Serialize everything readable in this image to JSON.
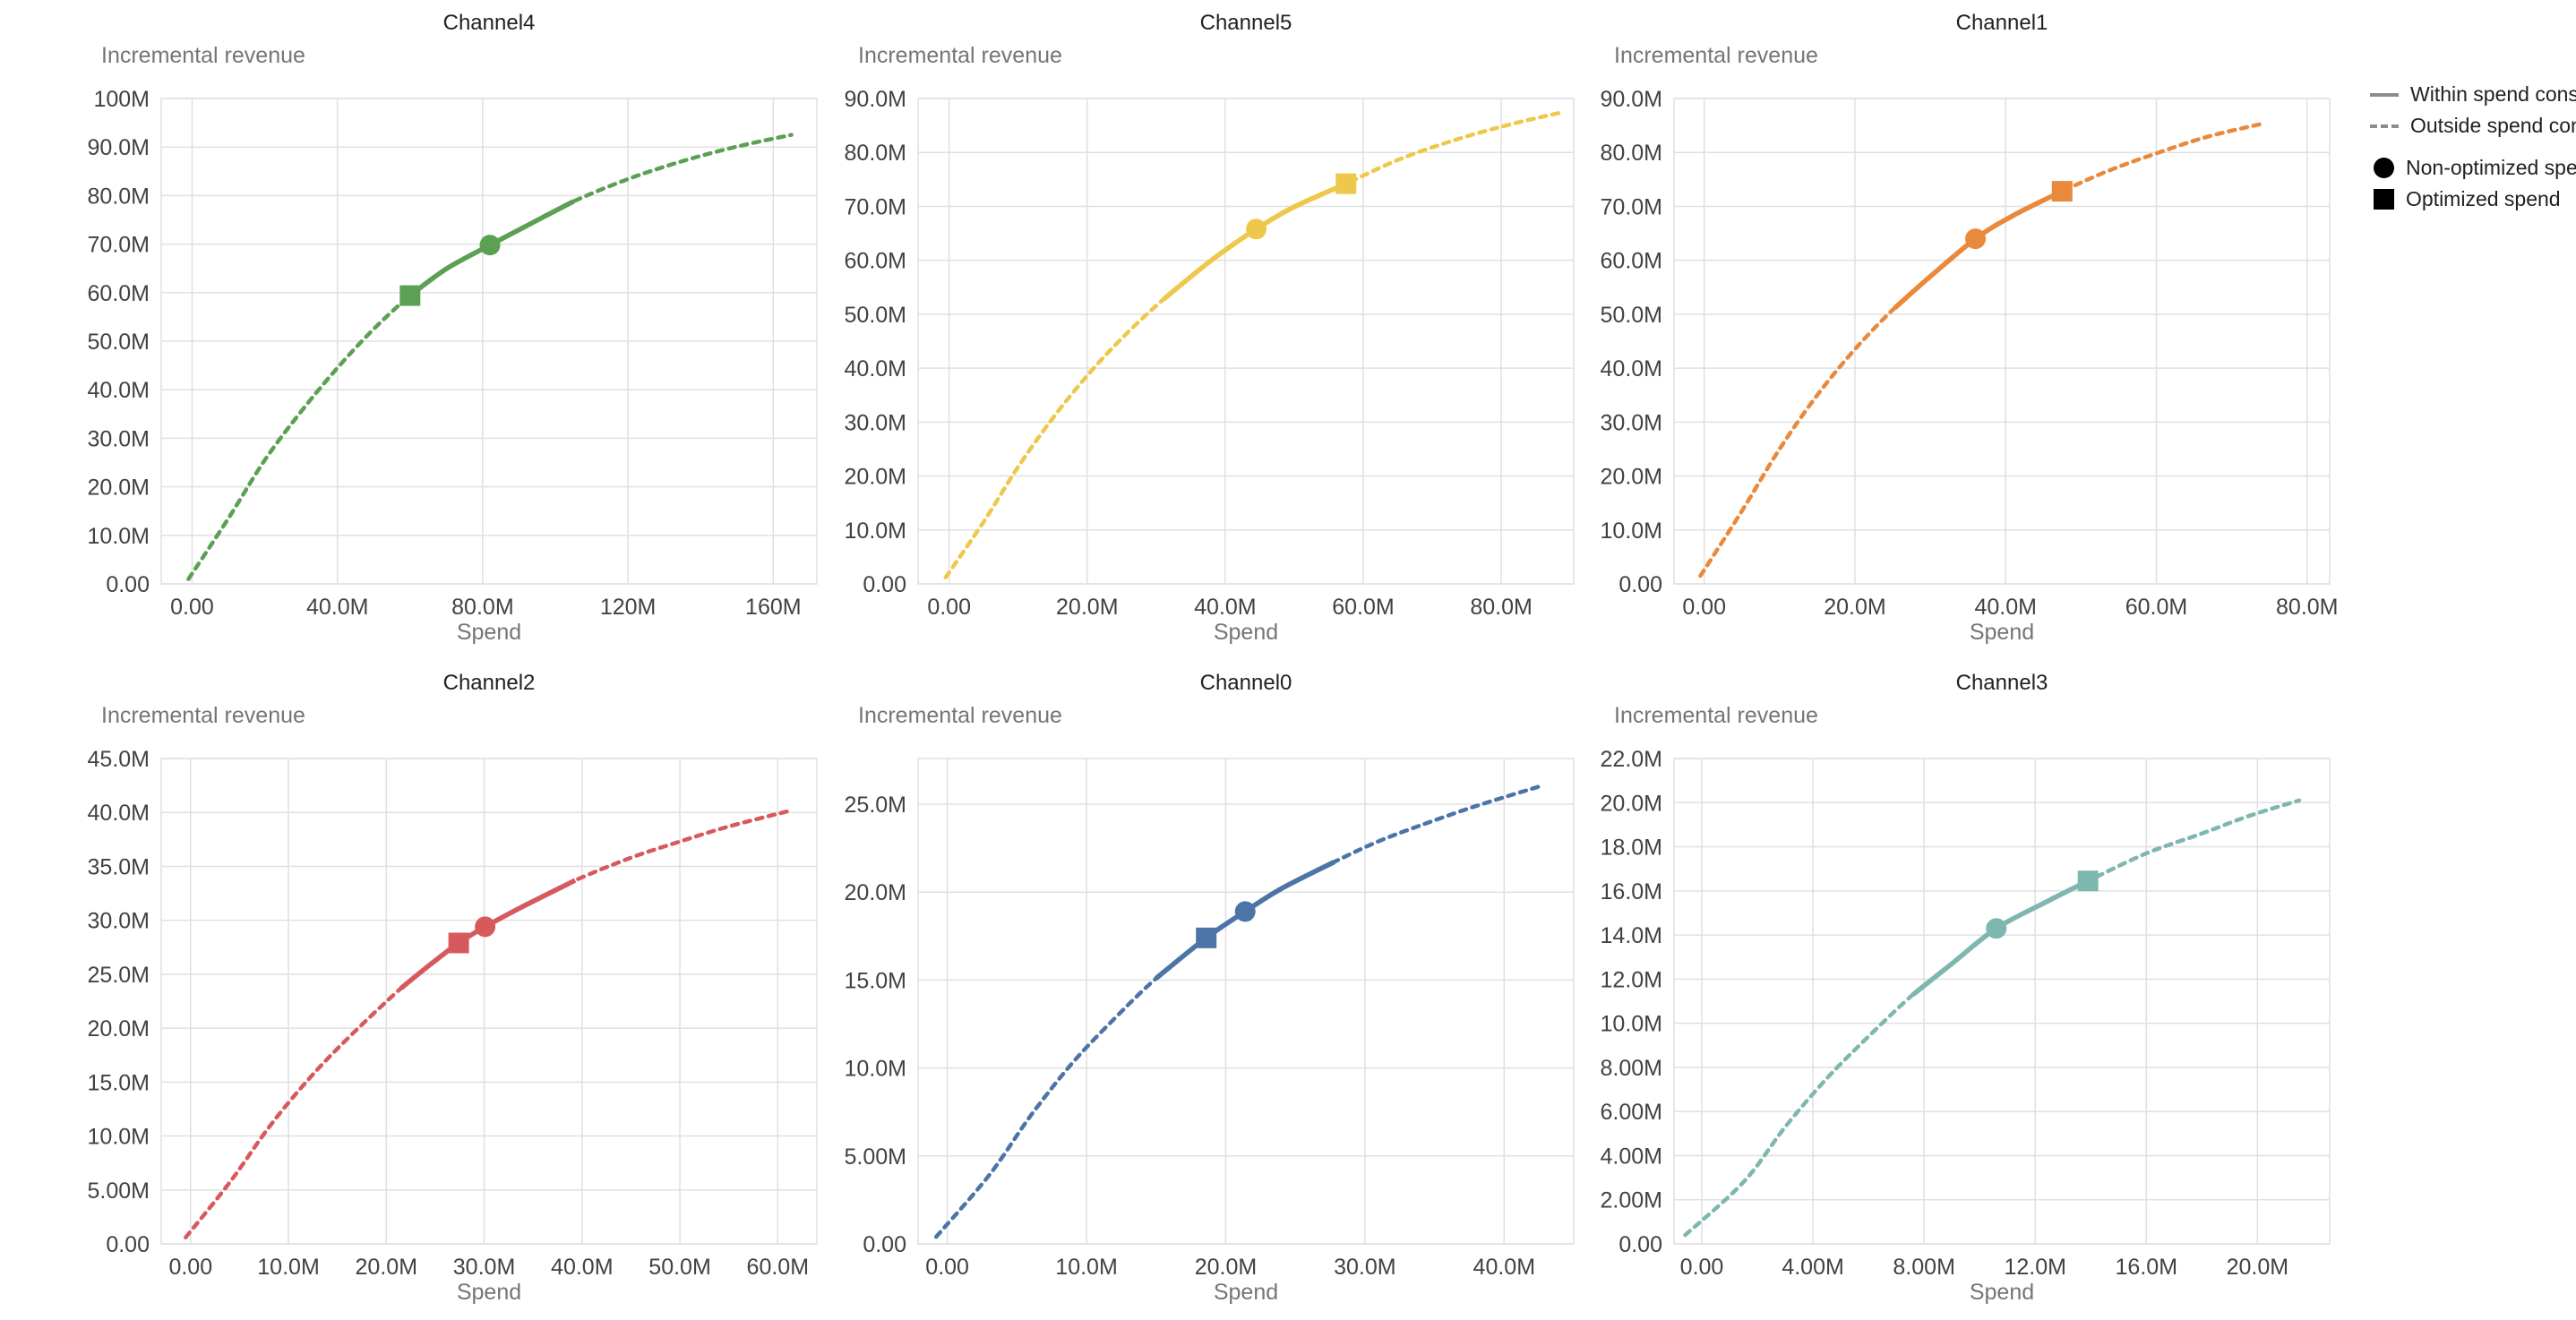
{
  "canvas": {
    "background": "#ffffff",
    "grid_color": "#e0e0e0",
    "tick_color": "#424242",
    "title_color": "#212121",
    "axis_title_color": "#757575"
  },
  "legend": {
    "line_color": "#8c8c8c",
    "marker_color": "#000000",
    "items": [
      {
        "label": "Within spend constraint",
        "swatch": "solid-line"
      },
      {
        "label": "Outside spend constraint",
        "swatch": "dashed-line"
      },
      {
        "label": "Non-optimized spend",
        "swatch": "circle"
      },
      {
        "label": "Optimized spend",
        "swatch": "square"
      }
    ]
  },
  "chart_data": [
    {
      "type": "line",
      "title": "Channel4",
      "xlabel": "Spend",
      "ylabel": "Incremental revenue",
      "color": "#5BA053",
      "xlim": [
        -8.5,
        172
      ],
      "ylim": [
        0,
        100
      ],
      "xticks": [
        {
          "v": 0,
          "label": "0.00"
        },
        {
          "v": 40,
          "label": "40.0M"
        },
        {
          "v": 80,
          "label": "80.0M"
        },
        {
          "v": 120,
          "label": "120M"
        },
        {
          "v": 160,
          "label": "160M"
        }
      ],
      "yticks": [
        {
          "v": 0,
          "label": "0.00"
        },
        {
          "v": 10,
          "label": "10.0M"
        },
        {
          "v": 20,
          "label": "20.0M"
        },
        {
          "v": 30,
          "label": "30.0M"
        },
        {
          "v": 40,
          "label": "40.0M"
        },
        {
          "v": 50,
          "label": "50.0M"
        },
        {
          "v": 60,
          "label": "60.0M"
        },
        {
          "v": 70,
          "label": "70.0M"
        },
        {
          "v": 80,
          "label": "80.0M"
        },
        {
          "v": 90,
          "label": "90.0M"
        },
        {
          "v": 100,
          "label": "100M"
        }
      ],
      "curve": [
        [
          -1,
          1.0
        ],
        [
          10,
          13.5
        ],
        [
          20,
          25.5
        ],
        [
          30,
          35.5
        ],
        [
          40,
          44.5
        ],
        [
          50,
          52.5
        ],
        [
          60,
          59.4
        ],
        [
          70,
          64.9
        ],
        [
          82,
          69.8
        ],
        [
          95,
          74.9
        ],
        [
          105,
          78.8
        ],
        [
          120,
          83.4
        ],
        [
          135,
          87.1
        ],
        [
          150,
          90.1
        ],
        [
          165,
          92.5
        ]
      ],
      "solid_range": [
        60,
        105
      ],
      "optimized_spend": {
        "x": 60,
        "y": 59.4
      },
      "non_optimized_spend": {
        "x": 82,
        "y": 69.8
      }
    },
    {
      "type": "line",
      "title": "Channel5",
      "xlabel": "Spend",
      "ylabel": "Incremental revenue",
      "color": "#EDC84B",
      "xlim": [
        -4.5,
        90.5
      ],
      "ylim": [
        0,
        90
      ],
      "xticks": [
        {
          "v": 0,
          "label": "0.00"
        },
        {
          "v": 20,
          "label": "20.0M"
        },
        {
          "v": 40,
          "label": "40.0M"
        },
        {
          "v": 60,
          "label": "60.0M"
        },
        {
          "v": 80,
          "label": "80.0M"
        }
      ],
      "yticks": [
        {
          "v": 0,
          "label": "0.00"
        },
        {
          "v": 10,
          "label": "10.0M"
        },
        {
          "v": 20,
          "label": "20.0M"
        },
        {
          "v": 30,
          "label": "30.0M"
        },
        {
          "v": 40,
          "label": "40.0M"
        },
        {
          "v": 50,
          "label": "50.0M"
        },
        {
          "v": 60,
          "label": "60.0M"
        },
        {
          "v": 70,
          "label": "70.0M"
        },
        {
          "v": 80,
          "label": "80.0M"
        },
        {
          "v": 90,
          "label": "90.0M"
        }
      ],
      "curve": [
        [
          -0.5,
          1.2
        ],
        [
          5,
          11.5
        ],
        [
          10,
          21.7
        ],
        [
          15,
          30.7
        ],
        [
          20,
          38.6
        ],
        [
          25,
          45.5
        ],
        [
          31,
          52.7
        ],
        [
          38,
          60
        ],
        [
          44.5,
          65.8
        ],
        [
          50,
          69.9
        ],
        [
          57.5,
          74.2
        ],
        [
          65,
          78.6
        ],
        [
          73,
          82.2
        ],
        [
          81,
          85.1
        ],
        [
          89,
          87.5
        ]
      ],
      "solid_range": [
        31,
        58.5
      ],
      "non_optimized_spend": {
        "x": 44.5,
        "y": 65.8
      },
      "optimized_spend": {
        "x": 57.5,
        "y": 74.2
      }
    },
    {
      "type": "line",
      "title": "Channel1",
      "xlabel": "Spend",
      "ylabel": "Incremental revenue",
      "color": "#E8893B",
      "xlim": [
        -4,
        83
      ],
      "ylim": [
        0,
        90
      ],
      "xticks": [
        {
          "v": 0,
          "label": "0.00"
        },
        {
          "v": 20,
          "label": "20.0M"
        },
        {
          "v": 40,
          "label": "40.0M"
        },
        {
          "v": 60,
          "label": "60.0M"
        },
        {
          "v": 80,
          "label": "80.0M"
        }
      ],
      "yticks": [
        {
          "v": 0,
          "label": "0.00"
        },
        {
          "v": 10,
          "label": "10.0M"
        },
        {
          "v": 20,
          "label": "20.0M"
        },
        {
          "v": 30,
          "label": "30.0M"
        },
        {
          "v": 40,
          "label": "40.0M"
        },
        {
          "v": 50,
          "label": "50.0M"
        },
        {
          "v": 60,
          "label": "60.0M"
        },
        {
          "v": 70,
          "label": "70.0M"
        },
        {
          "v": 80,
          "label": "80.0M"
        },
        {
          "v": 90,
          "label": "90.0M"
        }
      ],
      "curve": [
        [
          -0.5,
          1.5
        ],
        [
          5,
          13.5
        ],
        [
          10,
          25
        ],
        [
          15,
          35
        ],
        [
          20,
          43.5
        ],
        [
          25,
          50.8
        ],
        [
          30,
          57
        ],
        [
          36,
          64
        ],
        [
          41,
          68.3
        ],
        [
          47.5,
          72.8
        ],
        [
          54,
          76.8
        ],
        [
          61,
          80.3
        ],
        [
          67,
          83
        ],
        [
          74,
          85.3
        ]
      ],
      "solid_range": [
        25.3,
        47.5
      ],
      "non_optimized_spend": {
        "x": 36,
        "y": 64
      },
      "optimized_spend": {
        "x": 47.5,
        "y": 72.8
      }
    },
    {
      "type": "line",
      "title": "Channel2",
      "xlabel": "Spend",
      "ylabel": "Incremental revenue",
      "color": "#D65A5C",
      "xlim": [
        -3,
        64
      ],
      "ylim": [
        0,
        45
      ],
      "xticks": [
        {
          "v": 0,
          "label": "0.00"
        },
        {
          "v": 10,
          "label": "10.0M"
        },
        {
          "v": 20,
          "label": "20.0M"
        },
        {
          "v": 30,
          "label": "30.0M"
        },
        {
          "v": 40,
          "label": "40.0M"
        },
        {
          "v": 50,
          "label": "50.0M"
        },
        {
          "v": 60,
          "label": "60.0M"
        }
      ],
      "yticks": [
        {
          "v": 0,
          "label": "0.00"
        },
        {
          "v": 5,
          "label": "5.00M"
        },
        {
          "v": 10,
          "label": "10.0M"
        },
        {
          "v": 15,
          "label": "15.0M"
        },
        {
          "v": 20,
          "label": "20.0M"
        },
        {
          "v": 25,
          "label": "25.0M"
        },
        {
          "v": 30,
          "label": "30.0M"
        },
        {
          "v": 35,
          "label": "35.0M"
        },
        {
          "v": 40,
          "label": "40.0M"
        },
        {
          "v": 45,
          "label": "45.0M"
        }
      ],
      "curve": [
        [
          -0.5,
          0.6
        ],
        [
          4,
          5.7
        ],
        [
          8,
          10.8
        ],
        [
          12,
          15.2
        ],
        [
          16,
          19
        ],
        [
          21.5,
          23.7
        ],
        [
          24.5,
          25.9
        ],
        [
          27.4,
          27.9
        ],
        [
          30.1,
          29.4
        ],
        [
          34,
          31.3
        ],
        [
          39.3,
          33.7
        ],
        [
          45,
          35.8
        ],
        [
          50,
          37.3
        ],
        [
          55,
          38.7
        ],
        [
          61,
          40.1
        ]
      ],
      "solid_range": [
        21.5,
        39.3
      ],
      "optimized_spend": {
        "x": 27.4,
        "y": 27.9
      },
      "non_optimized_spend": {
        "x": 30.1,
        "y": 29.4
      }
    },
    {
      "type": "line",
      "title": "Channel0",
      "xlabel": "Spend",
      "ylabel": "Incremental revenue",
      "color": "#4C74A6",
      "xlim": [
        -2.1,
        45
      ],
      "ylim": [
        0,
        27.6
      ],
      "xticks": [
        {
          "v": 0,
          "label": "0.00"
        },
        {
          "v": 10,
          "label": "10.0M"
        },
        {
          "v": 20,
          "label": "20.0M"
        },
        {
          "v": 30,
          "label": "30.0M"
        },
        {
          "v": 40,
          "label": "40.0M"
        }
      ],
      "yticks": [
        {
          "v": 0,
          "label": "0.00"
        },
        {
          "v": 5,
          "label": "5.00M"
        },
        {
          "v": 10,
          "label": "10.0M"
        },
        {
          "v": 15,
          "label": "15.0M"
        },
        {
          "v": 20,
          "label": "20.0M"
        },
        {
          "v": 25,
          "label": "25.0M"
        }
      ],
      "curve": [
        [
          -0.8,
          0.4
        ],
        [
          3,
          3.9
        ],
        [
          6,
          7.3
        ],
        [
          9,
          10.3
        ],
        [
          12,
          12.8
        ],
        [
          15,
          15.1
        ],
        [
          18.6,
          17.4
        ],
        [
          21.4,
          18.9
        ],
        [
          24,
          20.2
        ],
        [
          28,
          21.8
        ],
        [
          31,
          22.9
        ],
        [
          34,
          23.8
        ],
        [
          38,
          24.9
        ],
        [
          42.5,
          26
        ]
      ],
      "solid_range": [
        15,
        27.8
      ],
      "optimized_spend": {
        "x": 18.6,
        "y": 17.4
      },
      "non_optimized_spend": {
        "x": 21.4,
        "y": 18.9
      }
    },
    {
      "type": "line",
      "title": "Channel3",
      "xlabel": "Spend",
      "ylabel": "Incremental revenue",
      "color": "#7EB6B0",
      "xlim": [
        -1,
        22.6
      ],
      "ylim": [
        0,
        22
      ],
      "xticks": [
        {
          "v": 0,
          "label": "0.00"
        },
        {
          "v": 4,
          "label": "4.00M"
        },
        {
          "v": 8,
          "label": "8.00M"
        },
        {
          "v": 12,
          "label": "12.0M"
        },
        {
          "v": 16,
          "label": "16.0M"
        },
        {
          "v": 20,
          "label": "20.0M"
        }
      ],
      "yticks": [
        {
          "v": 0,
          "label": "0.00"
        },
        {
          "v": 2,
          "label": "2.00M"
        },
        {
          "v": 4,
          "label": "4.00M"
        },
        {
          "v": 6,
          "label": "6.00M"
        },
        {
          "v": 8,
          "label": "8.00M"
        },
        {
          "v": 10,
          "label": "10.0M"
        },
        {
          "v": 12,
          "label": "12.0M"
        },
        {
          "v": 14,
          "label": "14.0M"
        },
        {
          "v": 16,
          "label": "16.0M"
        },
        {
          "v": 18,
          "label": "18.0M"
        },
        {
          "v": 20,
          "label": "20.0M"
        },
        {
          "v": 22,
          "label": "22.0M"
        }
      ],
      "curve": [
        [
          -0.6,
          0.4
        ],
        [
          1.5,
          2.8
        ],
        [
          3,
          5.3
        ],
        [
          4.5,
          7.5
        ],
        [
          6,
          9.4
        ],
        [
          7.6,
          11.3
        ],
        [
          9,
          12.7
        ],
        [
          10.6,
          14.3
        ],
        [
          12.4,
          15.5
        ],
        [
          13.9,
          16.45
        ],
        [
          16,
          17.7
        ],
        [
          18,
          18.6
        ],
        [
          19.7,
          19.4
        ],
        [
          21.5,
          20.1
        ]
      ],
      "solid_range": [
        7.6,
        14.1
      ],
      "non_optimized_spend": {
        "x": 10.6,
        "y": 14.3
      },
      "optimized_spend": {
        "x": 13.9,
        "y": 16.45
      }
    }
  ]
}
